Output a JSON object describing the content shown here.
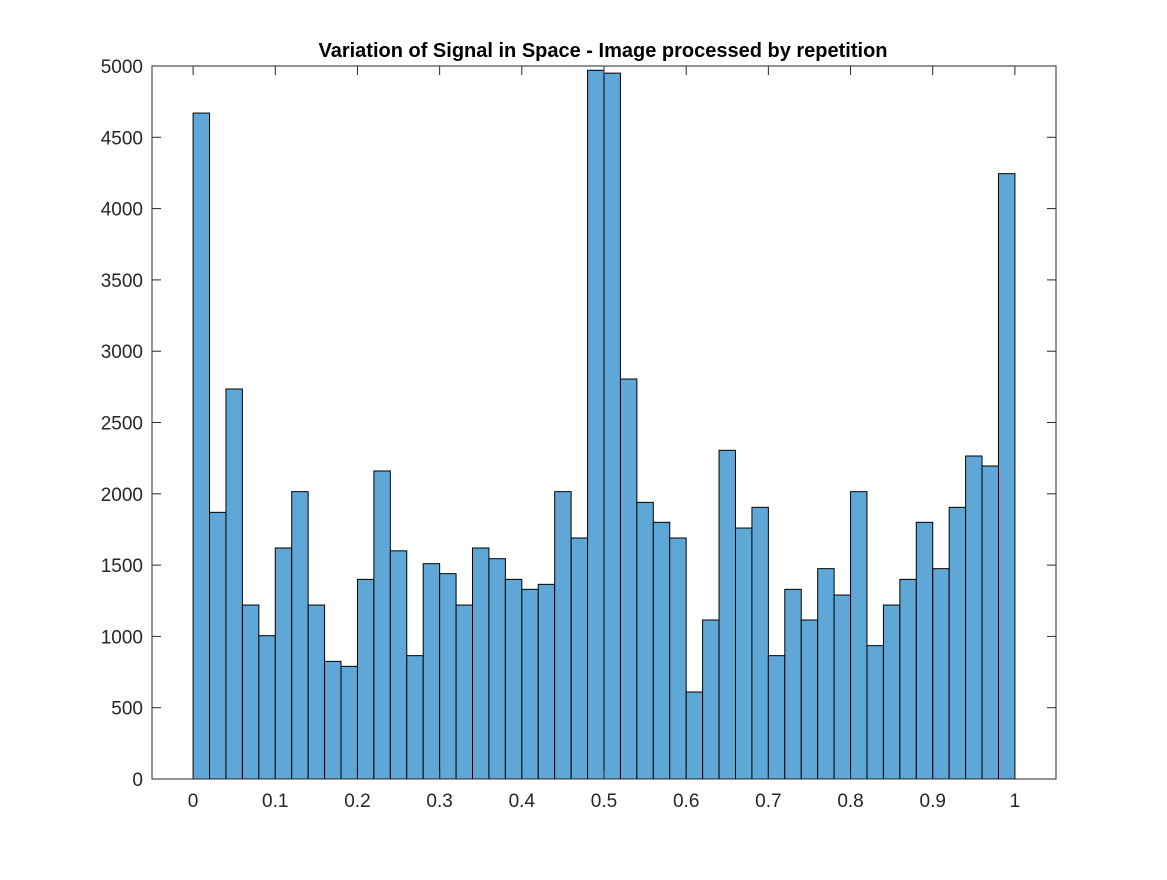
{
  "chart_data": {
    "type": "bar",
    "title": "Variation of Signal in Space - Image processed by repetition",
    "xlabel": "",
    "ylabel": "",
    "xlim": [
      -0.05,
      1.05
    ],
    "ylim": [
      0,
      5000
    ],
    "bin_edges_start": 0,
    "bin_width": 0.02,
    "bar_color": "#5fa7d6",
    "bar_edge_color": "#000000",
    "grid": false,
    "legend": "none",
    "x_ticks": [
      0,
      0.1,
      0.2,
      0.3,
      0.4,
      0.5,
      0.6,
      0.7,
      0.8,
      0.9,
      1
    ],
    "x_tick_labels": [
      "0",
      "0.1",
      "0.2",
      "0.3",
      "0.4",
      "0.5",
      "0.6",
      "0.7",
      "0.8",
      "0.9",
      "1"
    ],
    "y_ticks": [
      0,
      500,
      1000,
      1500,
      2000,
      2500,
      3000,
      3500,
      4000,
      4500,
      5000
    ],
    "y_tick_labels": [
      "0",
      "500",
      "1000",
      "1500",
      "2000",
      "2500",
      "3000",
      "3500",
      "4000",
      "4500",
      "5000"
    ],
    "values": [
      4670,
      1870,
      2735,
      1220,
      1005,
      1620,
      2015,
      1220,
      825,
      790,
      1400,
      2160,
      1600,
      865,
      1510,
      1440,
      1220,
      1620,
      1545,
      1400,
      1330,
      1365,
      2015,
      1690,
      4970,
      4950,
      2805,
      1940,
      1800,
      1690,
      610,
      1115,
      2305,
      1760,
      1905,
      865,
      1330,
      1115,
      1475,
      1290,
      2015,
      935,
      1220,
      1400,
      1800,
      1475,
      1905,
      2265,
      2195,
      4245
    ]
  }
}
